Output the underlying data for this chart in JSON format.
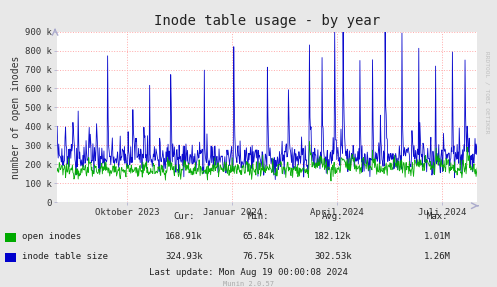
{
  "title": "Inode table usage - by year",
  "ylabel": "number of open inodes",
  "background_color": "#e8e8e8",
  "plot_bg_color": "#ffffff",
  "grid_color": "#ffaaaa",
  "ylim": [
    0,
    900000
  ],
  "yticks": [
    0,
    100000,
    200000,
    300000,
    400000,
    500000,
    600000,
    700000,
    800000,
    900000
  ],
  "ytick_labels": [
    "0",
    "100 k",
    "200 k",
    "300 k",
    "400 k",
    "500 k",
    "600 k",
    "700 k",
    "800 k",
    "900 k"
  ],
  "xtick_labels": [
    "Oktober 2023",
    "Januar 2024",
    "April 2024",
    "Juli 2024"
  ],
  "xtick_positions": [
    0.1667,
    0.4167,
    0.6667,
    0.9167
  ],
  "green_color": "#00aa00",
  "blue_color": "#0000cc",
  "legend_items": [
    "open inodes",
    "inode table size"
  ],
  "cur_label": "Cur:",
  "min_label": "Min:",
  "avg_label": "Avg:",
  "max_label": "Max:",
  "open_cur": "168.91k",
  "open_min": "65.84k",
  "open_avg": "182.12k",
  "open_max": "1.01M",
  "table_cur": "324.93k",
  "table_min": "76.75k",
  "table_avg": "302.53k",
  "table_max": "1.26M",
  "last_update": "Last update: Mon Aug 19 00:00:08 2024",
  "munin_version": "Munin 2.0.57",
  "rrdtool_label": "RRDTOOL / TOBI OETIKER",
  "title_fontsize": 10,
  "axis_label_fontsize": 7,
  "tick_fontsize": 6.5,
  "legend_fontsize": 6.5,
  "table_fontsize": 6.5,
  "arrow_color": "#aaaacc",
  "spine_color": "#aaaacc"
}
